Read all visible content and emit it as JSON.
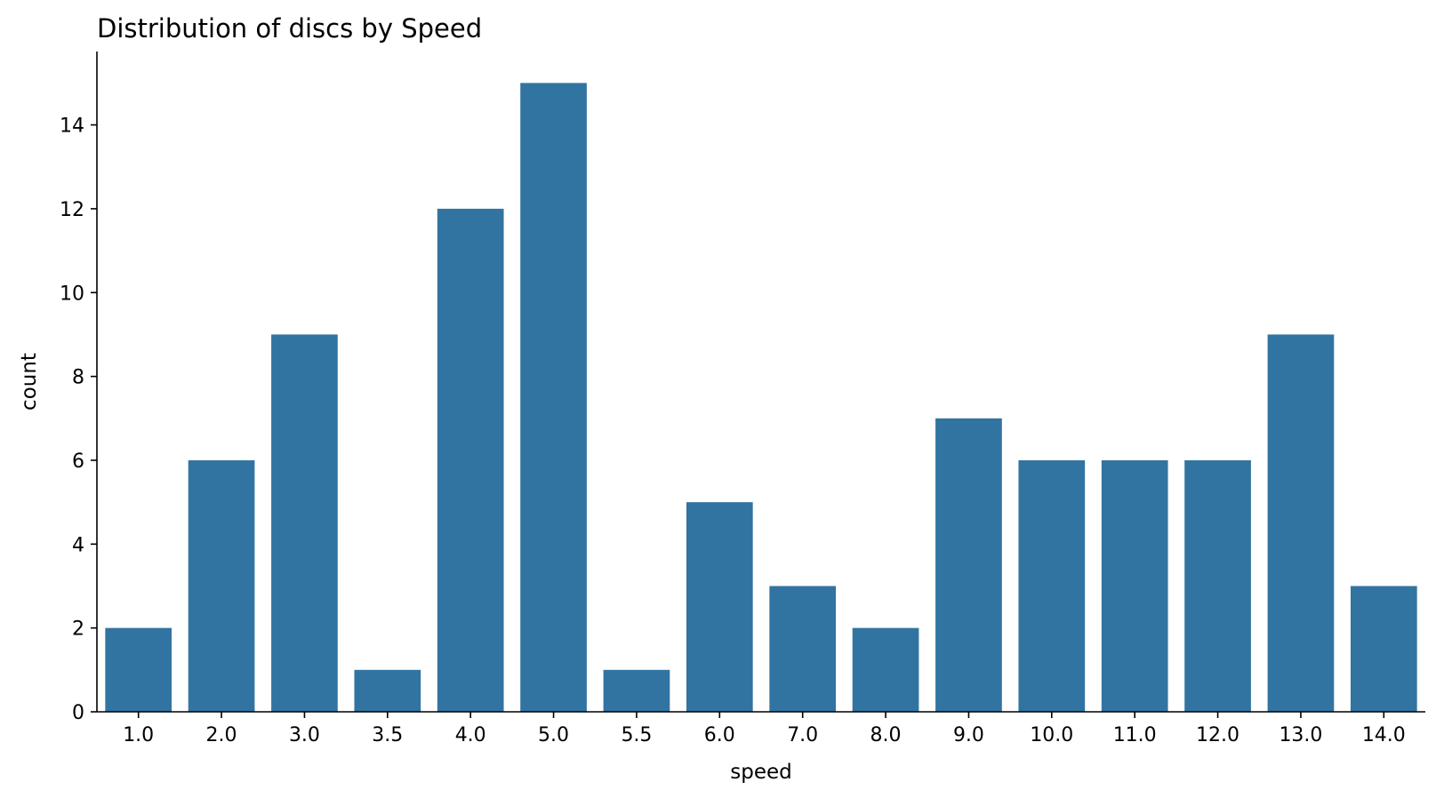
{
  "chart_data": {
    "type": "bar",
    "title": "Distribution of discs by Speed",
    "xlabel": "speed",
    "ylabel": "count",
    "categories": [
      "1.0",
      "2.0",
      "3.0",
      "3.5",
      "4.0",
      "5.0",
      "5.5",
      "6.0",
      "7.0",
      "8.0",
      "9.0",
      "10.0",
      "11.0",
      "12.0",
      "13.0",
      "14.0"
    ],
    "values": [
      2,
      6,
      9,
      1,
      12,
      15,
      1,
      5,
      3,
      2,
      7,
      6,
      6,
      6,
      9,
      3
    ],
    "ylim": [
      0,
      15.75
    ],
    "yticks": [
      0,
      2,
      4,
      6,
      8,
      10,
      12,
      14
    ],
    "grid": false,
    "legend": "none",
    "colors": {
      "bar": "#3274a1",
      "axis": "#000000"
    }
  }
}
